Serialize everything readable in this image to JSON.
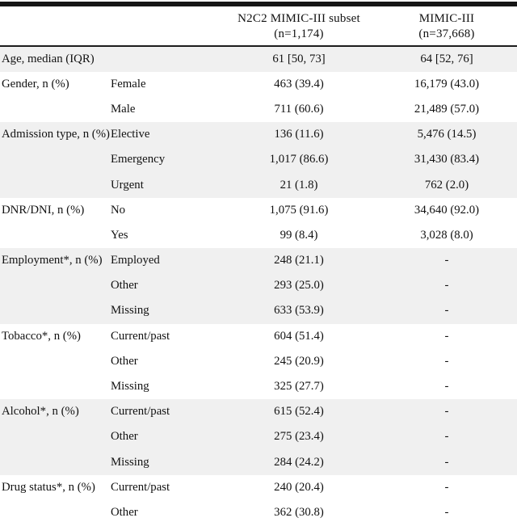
{
  "table": {
    "header": {
      "n2c2_line1": "N2C2 MIMIC-III subset",
      "n2c2_line2": "(n=1,174)",
      "mimic_line1": "MIMIC-III",
      "mimic_line2": "(n=37,668)"
    },
    "groups": [
      {
        "label": "Age, median (IQR)",
        "shaded": true,
        "rows": [
          {
            "sub": "",
            "n2c2": "61 [50, 73]",
            "mimic": "64 [52, 76]"
          }
        ]
      },
      {
        "label": "Gender, n (%)",
        "shaded": false,
        "rows": [
          {
            "sub": "Female",
            "n2c2": "463 (39.4)",
            "mimic": "16,179 (43.0)"
          },
          {
            "sub": "Male",
            "n2c2": "711 (60.6)",
            "mimic": "21,489 (57.0)"
          }
        ]
      },
      {
        "label": "Admission type, n (%)",
        "shaded": true,
        "rows": [
          {
            "sub": "Elective",
            "n2c2": "136 (11.6)",
            "mimic": "5,476 (14.5)"
          },
          {
            "sub": "Emergency",
            "n2c2": "1,017 (86.6)",
            "mimic": "31,430 (83.4)"
          },
          {
            "sub": "Urgent",
            "n2c2": "21 (1.8)",
            "mimic": "762 (2.0)"
          }
        ]
      },
      {
        "label": "DNR/DNI, n (%)",
        "shaded": false,
        "rows": [
          {
            "sub": "No",
            "n2c2": "1,075 (91.6)",
            "mimic": "34,640 (92.0)"
          },
          {
            "sub": "Yes",
            "n2c2": "99 (8.4)",
            "mimic": "3,028 (8.0)"
          }
        ]
      },
      {
        "label": "Employment*, n (%)",
        "shaded": true,
        "rows": [
          {
            "sub": "Employed",
            "n2c2": "248 (21.1)",
            "mimic": "-"
          },
          {
            "sub": "Other",
            "n2c2": "293 (25.0)",
            "mimic": "-"
          },
          {
            "sub": "Missing",
            "n2c2": "633 (53.9)",
            "mimic": "-"
          }
        ]
      },
      {
        "label": "Tobacco*, n (%)",
        "shaded": false,
        "rows": [
          {
            "sub": "Current/past",
            "n2c2": "604 (51.4)",
            "mimic": "-"
          },
          {
            "sub": "Other",
            "n2c2": "245 (20.9)",
            "mimic": "-"
          },
          {
            "sub": "Missing",
            "n2c2": "325 (27.7)",
            "mimic": "-"
          }
        ]
      },
      {
        "label": "Alcohol*, n (%)",
        "shaded": true,
        "rows": [
          {
            "sub": "Current/past",
            "n2c2": "615 (52.4)",
            "mimic": "-"
          },
          {
            "sub": "Other",
            "n2c2": "275 (23.4)",
            "mimic": "-"
          },
          {
            "sub": "Missing",
            "n2c2": "284 (24.2)",
            "mimic": "-"
          }
        ]
      },
      {
        "label": "Drug status*, n (%)",
        "shaded": false,
        "rows": [
          {
            "sub": "Current/past",
            "n2c2": "240 (20.4)",
            "mimic": "-"
          },
          {
            "sub": "Other",
            "n2c2": "362 (30.8)",
            "mimic": "-"
          }
        ]
      }
    ]
  },
  "colors": {
    "background": "#ffffff",
    "band": "#f0f0f0",
    "top_rule": "#161616",
    "header_rule": "#1c1c1c",
    "text": "#111111"
  }
}
